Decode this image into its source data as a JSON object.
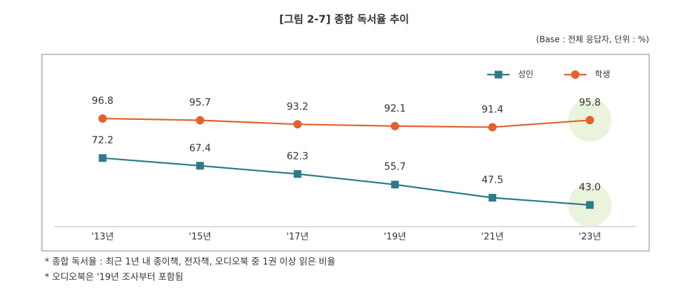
{
  "chart_data": {
    "type": "line",
    "title": "[그림 2-7] 종합 독서율 추이",
    "subtitle": "(Base : 전체 응답자, 단위 : %)",
    "categories": [
      "'13년",
      "'15년",
      "'17년",
      "'19년",
      "'21년",
      "'23년"
    ],
    "series": [
      {
        "name": "성인",
        "color": "#2c7a8a",
        "marker": "square",
        "values": [
          72.2,
          67.4,
          62.3,
          55.7,
          47.5,
          43.0
        ],
        "value_labels": [
          "72.2",
          "67.4",
          "62.3",
          "55.7",
          "47.5",
          "43.0"
        ]
      },
      {
        "name": "학생",
        "color": "#e3612b",
        "marker": "circle",
        "values": [
          96.8,
          95.7,
          93.2,
          92.1,
          91.4,
          95.8
        ],
        "value_labels": [
          "96.8",
          "95.7",
          "93.2",
          "92.1",
          "91.4",
          "95.8"
        ]
      }
    ],
    "legend": "top-right",
    "notes": [
      "* 종합 독서율 : 최근 1년 내 종이책, 전자책, 오디오북 중 1권 이상 읽은 비율",
      "* 오디오북은 '19년 조사부터 포함됨"
    ]
  }
}
